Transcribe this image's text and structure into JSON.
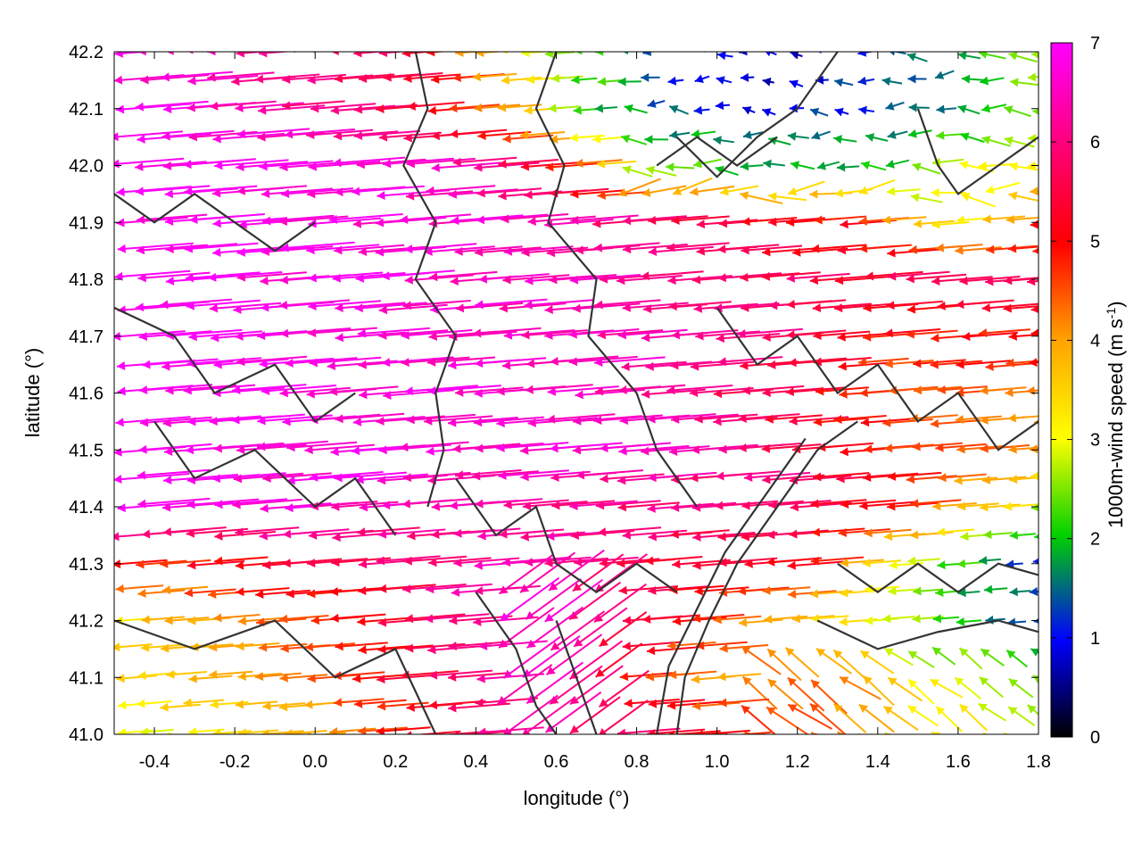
{
  "chart_data": {
    "type": "vector-field",
    "xlabel": "longitude (°)",
    "ylabel": "latitude (°)",
    "xlim": [
      -0.5,
      1.8
    ],
    "ylim": [
      41.0,
      42.2
    ],
    "xticks": [
      "-0.4",
      "-0.2",
      "0.0",
      "0.2",
      "0.4",
      "0.6",
      "0.8",
      "1.0",
      "1.2",
      "1.4",
      "1.6",
      "1.8"
    ],
    "yticks": [
      "41.0",
      "41.1",
      "41.2",
      "41.3",
      "41.4",
      "41.5",
      "41.6",
      "41.7",
      "41.8",
      "41.9",
      "42.0",
      "42.1",
      "42.2"
    ],
    "colorbar": {
      "label": "1000m-wind speed (m s",
      "label_sup": "-1",
      "label_end": ")",
      "range": [
        0,
        7
      ],
      "ticks": [
        "0",
        "1",
        "2",
        "3",
        "4",
        "5",
        "6",
        "7"
      ],
      "colors": [
        "#000000",
        "#0000ff",
        "#00d000",
        "#ffff00",
        "#ffa500",
        "#ff0000",
        "#ff00ff"
      ]
    },
    "vector_rows": [
      {
        "lat": 42.18,
        "segments": [
          [
            -0.5,
            6.8
          ],
          [
            0.2,
            5.5
          ],
          [
            0.5,
            3.0
          ],
          [
            0.8,
            1.5
          ],
          [
            1.1,
            0.8
          ],
          [
            1.5,
            1.5
          ],
          [
            1.8,
            3.0
          ]
        ]
      },
      {
        "lat": 42.1,
        "segments": [
          [
            -0.5,
            7.0
          ],
          [
            0.2,
            5.5
          ],
          [
            0.45,
            4.0
          ],
          [
            0.7,
            2.0
          ],
          [
            1.0,
            1.0
          ],
          [
            1.4,
            1.2
          ],
          [
            1.8,
            2.5
          ]
        ]
      },
      {
        "lat": 42.0,
        "segments": [
          [
            -0.5,
            7.0
          ],
          [
            0.3,
            6.5
          ],
          [
            0.6,
            4.5
          ],
          [
            0.8,
            2.5
          ],
          [
            1.0,
            2.0
          ],
          [
            1.4,
            2.0
          ],
          [
            1.8,
            3.5
          ]
        ]
      },
      {
        "lat": 41.9,
        "segments": [
          [
            -0.5,
            7.0
          ],
          [
            0.5,
            6.5
          ],
          [
            0.9,
            5.5
          ],
          [
            1.3,
            5.0
          ],
          [
            1.6,
            3.0
          ],
          [
            1.8,
            5.0
          ]
        ]
      },
      {
        "lat": 41.8,
        "segments": [
          [
            -0.5,
            7.0
          ],
          [
            0.6,
            6.5
          ],
          [
            0.9,
            6.0
          ],
          [
            1.3,
            5.5
          ],
          [
            1.8,
            5.5
          ]
        ]
      },
      {
        "lat": 41.7,
        "segments": [
          [
            -0.5,
            7.0
          ],
          [
            0.6,
            6.5
          ],
          [
            1.0,
            6.0
          ],
          [
            1.4,
            5.0
          ],
          [
            1.8,
            5.0
          ]
        ]
      },
      {
        "lat": 41.6,
        "segments": [
          [
            -0.5,
            7.0
          ],
          [
            0.7,
            6.5
          ],
          [
            1.1,
            5.5
          ],
          [
            1.4,
            4.5
          ],
          [
            1.8,
            4.5
          ]
        ]
      },
      {
        "lat": 41.5,
        "segments": [
          [
            -0.5,
            7.0
          ],
          [
            0.8,
            6.5
          ],
          [
            1.2,
            5.5
          ],
          [
            1.5,
            4.5
          ],
          [
            1.8,
            4.0
          ]
        ]
      },
      {
        "lat": 41.4,
        "segments": [
          [
            -0.5,
            7.0
          ],
          [
            0.8,
            6.0
          ],
          [
            1.1,
            6.0
          ],
          [
            1.5,
            4.5
          ],
          [
            1.8,
            2.5
          ]
        ]
      },
      {
        "lat": 41.3,
        "segments": [
          [
            -0.5,
            4.8
          ],
          [
            0.0,
            5.5
          ],
          [
            0.5,
            6.5
          ],
          [
            0.8,
            5.5
          ],
          [
            1.2,
            5.0
          ],
          [
            1.5,
            2.5
          ],
          [
            1.8,
            1.0
          ]
        ]
      },
      {
        "lat": 41.2,
        "segments": [
          [
            -0.5,
            3.5
          ],
          [
            0.0,
            4.8
          ],
          [
            0.5,
            6.8
          ],
          [
            0.9,
            5.0
          ],
          [
            1.2,
            3.5
          ],
          [
            1.5,
            2.5
          ],
          [
            1.8,
            1.0
          ]
        ]
      },
      {
        "lat": 41.1,
        "segments": [
          [
            -0.5,
            3.5
          ],
          [
            0.0,
            4.5
          ],
          [
            0.5,
            6.8
          ],
          [
            0.9,
            4.0
          ],
          [
            1.2,
            4.5
          ],
          [
            1.5,
            3.0
          ],
          [
            1.8,
            2.5
          ]
        ]
      },
      {
        "lat": 41.02,
        "segments": [
          [
            -0.5,
            3.0
          ],
          [
            0.0,
            4.0
          ],
          [
            0.5,
            6.5
          ],
          [
            0.9,
            5.0
          ],
          [
            1.2,
            4.5
          ],
          [
            1.5,
            3.5
          ],
          [
            1.8,
            3.0
          ]
        ]
      }
    ],
    "grid": false
  }
}
